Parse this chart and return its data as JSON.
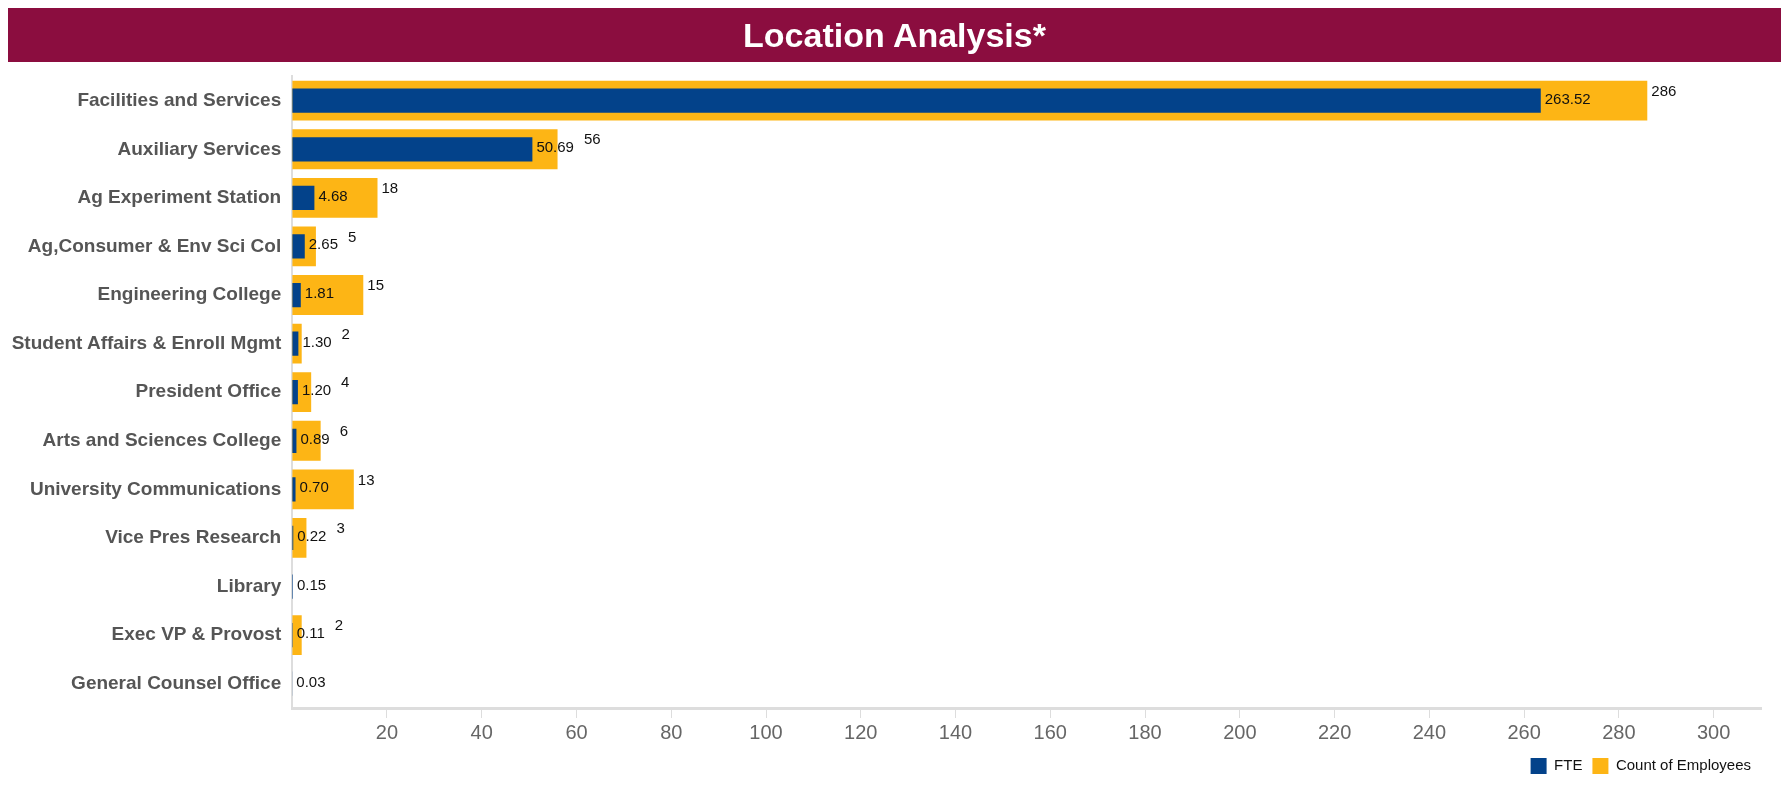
{
  "chart_data": {
    "type": "bar",
    "orientation": "horizontal",
    "title": "Location Analysis*",
    "categories": [
      "Facilities and Services",
      "Auxiliary Services",
      "Ag Experiment Station",
      "Ag,Consumer & Env Sci Col",
      "Engineering College",
      "Student Affairs & Enroll Mgmt",
      "President Office",
      "Arts and Sciences College",
      "University Communications",
      "Vice Pres Research",
      "Library",
      "Exec VP & Provost",
      "General Counsel Office"
    ],
    "series": [
      {
        "name": "Count of Employees",
        "color": "#fdb515",
        "values": [
          286,
          56,
          18,
          5,
          15,
          2,
          4,
          6,
          13,
          3,
          null,
          2,
          null
        ],
        "value_labels": [
          "286",
          "56",
          "18",
          "5",
          "15",
          "2",
          "4",
          "6",
          "13",
          "3",
          null,
          "2",
          null
        ]
      },
      {
        "name": "FTE",
        "color": "#03428a",
        "values": [
          263.52,
          50.69,
          4.68,
          2.65,
          1.81,
          1.3,
          1.2,
          0.89,
          0.7,
          0.22,
          0.15,
          0.11,
          0.03
        ],
        "value_labels": [
          "263.52",
          "50.69",
          "4.68",
          "2.65",
          "1.81",
          "1.30",
          "1.20",
          "0.89",
          "0.70",
          "0.22",
          "0.15",
          "0.11",
          "0.03"
        ]
      }
    ],
    "xlim": [
      0,
      310
    ],
    "xticks": [
      20,
      40,
      60,
      80,
      100,
      120,
      140,
      160,
      180,
      200,
      220,
      240,
      260,
      280,
      300
    ],
    "grid": false,
    "legend": "bottom right"
  }
}
